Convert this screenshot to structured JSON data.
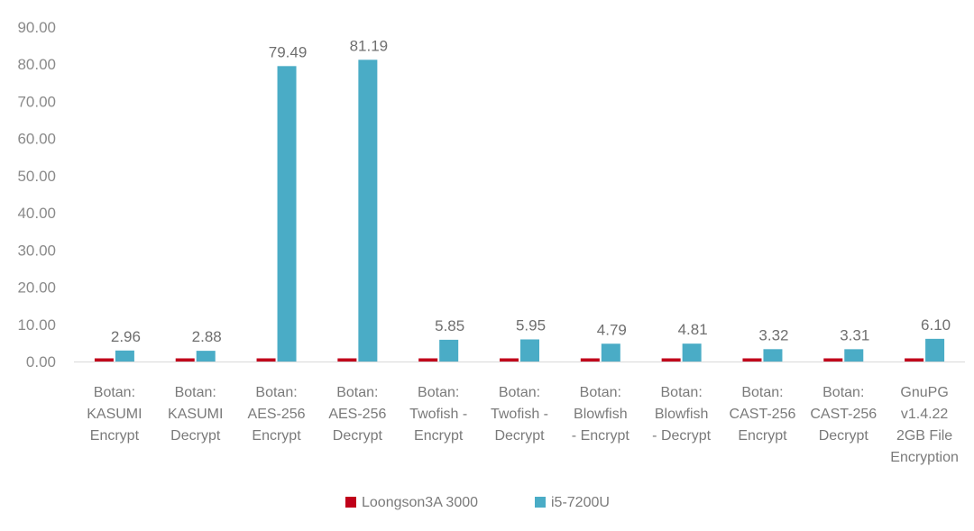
{
  "chart_data": {
    "type": "bar",
    "title": "",
    "xlabel": "",
    "ylabel": "",
    "ylim": [
      0,
      90
    ],
    "yticks": [
      "0.00",
      "10.00",
      "20.00",
      "30.00",
      "40.00",
      "50.00",
      "60.00",
      "70.00",
      "80.00",
      "90.00"
    ],
    "grid": false,
    "legend_position": "bottom",
    "categories": [
      [
        "Botan:",
        "KASUMI",
        "Encrypt"
      ],
      [
        "Botan:",
        "KASUMI",
        "Decrypt"
      ],
      [
        "Botan:",
        "AES-256",
        "Encrypt"
      ],
      [
        "Botan:",
        "AES-256",
        "Decrypt"
      ],
      [
        "Botan:",
        "Twofish -",
        "Encrypt"
      ],
      [
        "Botan:",
        "Twofish -",
        "Decrypt"
      ],
      [
        "Botan:",
        "Blowfish",
        "- Encrypt"
      ],
      [
        "Botan:",
        "Blowfish",
        "- Decrypt"
      ],
      [
        "Botan:",
        "CAST-256",
        "Encrypt"
      ],
      [
        "Botan:",
        "CAST-256",
        "Decrypt"
      ],
      [
        "GnuPG",
        "v1.4.22",
        "2GB File",
        "Encryption"
      ]
    ],
    "series": [
      {
        "name": "Loongson3A 3000",
        "color": "#c0001a",
        "values": [
          0,
          0,
          0,
          0,
          0,
          0,
          0,
          0,
          0,
          0,
          0
        ],
        "labels": []
      },
      {
        "name": "i5-7200U",
        "color": "#4aacc6",
        "values": [
          2.96,
          2.88,
          79.49,
          81.19,
          5.85,
          5.95,
          4.79,
          4.81,
          3.32,
          3.31,
          6.1
        ],
        "labels": [
          "2.96",
          "2.88",
          "79.49",
          "81.19",
          "5.85",
          "5.95",
          "4.79",
          "4.81",
          "3.32",
          "3.31",
          "6.10"
        ]
      }
    ]
  }
}
